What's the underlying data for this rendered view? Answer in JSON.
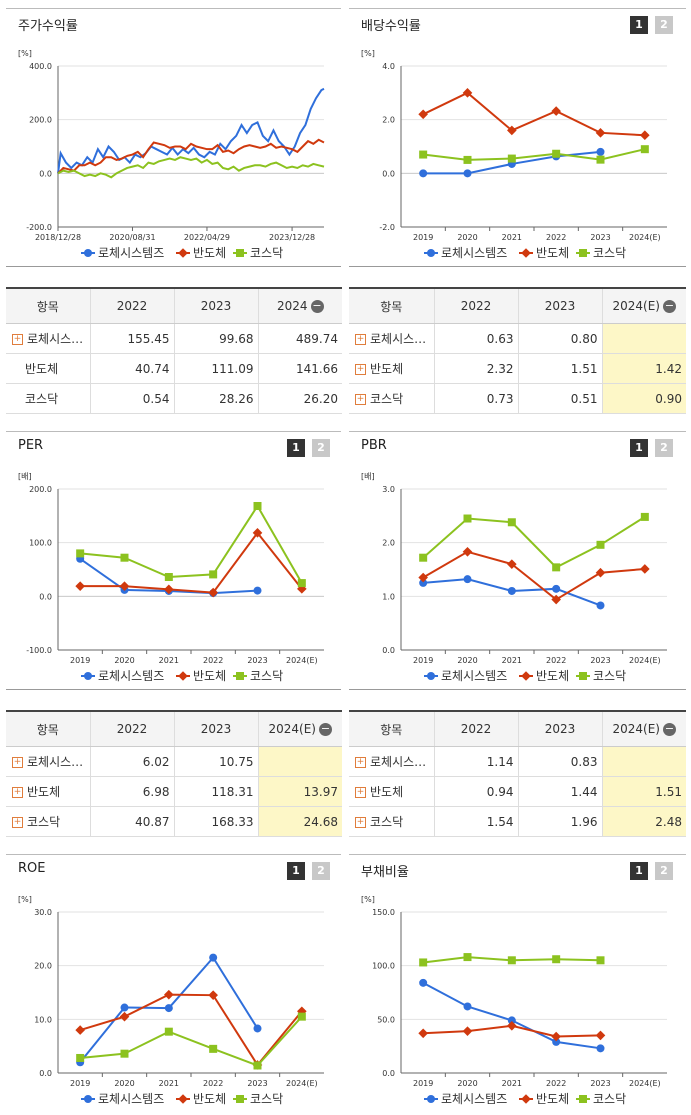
{
  "colors": {
    "rohe": "#2f6fdb",
    "semi": "#d0390e",
    "kosdaq": "#8cc21f"
  },
  "panels": {
    "stock_return": {
      "title": "주가수익률"
    },
    "dividend": {
      "title": "배당수익률",
      "page1": "1",
      "page2": "2"
    },
    "per": {
      "title": "PER",
      "page1": "1",
      "page2": "2"
    },
    "pbr": {
      "title": "PBR",
      "page1": "1",
      "page2": "2"
    },
    "roe": {
      "title": "ROE",
      "page1": "1",
      "page2": "2"
    },
    "debt": {
      "title": "부채비율",
      "page1": "1",
      "page2": "2"
    }
  },
  "chart_data": [
    {
      "id": "stock_return",
      "type": "line",
      "title": "주가수익률",
      "unit": "[%]",
      "ylim": [
        -200,
        400
      ],
      "yticks": [
        "400.0",
        "200.0",
        "0.0",
        "-200.0"
      ],
      "xtick_labels": [
        "2018/12/28",
        "2020/08/31",
        "2022/04/29",
        "2023/12/28"
      ],
      "x_range": [
        0,
        100
      ],
      "xtick_pos": [
        0,
        28,
        56,
        88
      ],
      "series": [
        {
          "name": "로체시스템즈",
          "color": "#2f6fdb",
          "x": [
            0,
            1,
            3,
            5,
            7,
            9,
            11,
            13,
            15,
            17,
            19,
            21,
            23,
            25,
            27,
            29,
            31,
            33,
            35,
            37,
            39,
            41,
            43,
            45,
            47,
            49,
            51,
            53,
            55,
            57,
            59,
            61,
            63,
            65,
            67,
            69,
            71,
            73,
            75,
            77,
            79,
            81,
            83,
            85,
            87,
            89,
            91,
            93,
            95,
            97,
            99,
            100
          ],
          "values": [
            0,
            75,
            40,
            20,
            40,
            30,
            60,
            40,
            90,
            60,
            100,
            80,
            50,
            60,
            40,
            70,
            60,
            75,
            100,
            90,
            80,
            70,
            95,
            70,
            90,
            75,
            95,
            70,
            60,
            80,
            70,
            110,
            90,
            120,
            140,
            180,
            150,
            180,
            190,
            140,
            120,
            160,
            120,
            100,
            70,
            100,
            150,
            180,
            240,
            280,
            310,
            315
          ]
        },
        {
          "name": "반도체",
          "color": "#d0390e",
          "x": [
            0,
            2,
            4,
            6,
            8,
            10,
            12,
            14,
            16,
            18,
            20,
            22,
            24,
            26,
            28,
            30,
            32,
            34,
            36,
            38,
            40,
            42,
            44,
            46,
            48,
            50,
            52,
            54,
            56,
            58,
            60,
            62,
            64,
            66,
            68,
            70,
            72,
            74,
            76,
            78,
            80,
            82,
            84,
            86,
            88,
            90,
            92,
            94,
            96,
            98,
            100
          ],
          "values": [
            0,
            20,
            15,
            10,
            30,
            30,
            40,
            30,
            40,
            60,
            60,
            50,
            55,
            65,
            70,
            80,
            60,
            90,
            115,
            110,
            105,
            95,
            100,
            100,
            90,
            110,
            100,
            95,
            90,
            90,
            105,
            80,
            85,
            75,
            90,
            100,
            105,
            100,
            95,
            100,
            110,
            95,
            100,
            95,
            90,
            80,
            100,
            120,
            110,
            125,
            115
          ]
        },
        {
          "name": "코스닥",
          "color": "#8cc21f",
          "x": [
            0,
            2,
            4,
            6,
            8,
            10,
            12,
            14,
            16,
            18,
            20,
            22,
            24,
            26,
            28,
            30,
            32,
            34,
            36,
            38,
            40,
            42,
            44,
            46,
            48,
            50,
            52,
            54,
            56,
            58,
            60,
            62,
            64,
            66,
            68,
            70,
            72,
            74,
            76,
            78,
            80,
            82,
            84,
            86,
            88,
            90,
            92,
            94,
            96,
            98,
            100
          ],
          "values": [
            0,
            10,
            5,
            10,
            0,
            -10,
            -5,
            -10,
            0,
            -5,
            -15,
            0,
            10,
            20,
            25,
            30,
            20,
            40,
            35,
            45,
            50,
            55,
            50,
            60,
            55,
            50,
            55,
            40,
            50,
            35,
            40,
            20,
            15,
            25,
            10,
            20,
            25,
            30,
            30,
            25,
            35,
            40,
            30,
            20,
            25,
            20,
            30,
            25,
            35,
            30,
            25
          ]
        }
      ]
    },
    {
      "id": "dividend",
      "type": "line",
      "unit": "[%]",
      "ylim": [
        -2,
        4
      ],
      "yticks": [
        "4.0",
        "2.0",
        "0.0",
        "-2.0"
      ],
      "categories": [
        "2019",
        "2020",
        "2021",
        "2022",
        "2023",
        "2024(E)"
      ],
      "series": [
        {
          "name": "로체시스템즈",
          "color": "#2f6fdb",
          "values": [
            0.0,
            0.0,
            0.35,
            0.63,
            0.8,
            null
          ]
        },
        {
          "name": "반도체",
          "color": "#d0390e",
          "values": [
            2.2,
            3.0,
            1.6,
            2.32,
            1.51,
            1.42
          ]
        },
        {
          "name": "코스닥",
          "color": "#8cc21f",
          "values": [
            0.7,
            0.5,
            0.55,
            0.73,
            0.51,
            0.9
          ]
        }
      ]
    },
    {
      "id": "per",
      "type": "line",
      "unit": "[배]",
      "ylim": [
        -100,
        200
      ],
      "yticks": [
        "200.0",
        "100.0",
        "0.0",
        "-100.0"
      ],
      "categories": [
        "2019",
        "2020",
        "2021",
        "2022",
        "2023",
        "2024(E)"
      ],
      "series": [
        {
          "name": "로체시스템즈",
          "color": "#2f6fdb",
          "values": [
            70,
            12,
            10,
            6.02,
            10.75,
            null
          ]
        },
        {
          "name": "반도체",
          "color": "#d0390e",
          "values": [
            19,
            19,
            13,
            6.98,
            118.31,
            13.97
          ]
        },
        {
          "name": "코스닥",
          "color": "#8cc21f",
          "values": [
            80,
            72,
            36,
            40.87,
            168.33,
            24.68
          ]
        }
      ]
    },
    {
      "id": "pbr",
      "type": "line",
      "unit": "[배]",
      "ylim": [
        0,
        3
      ],
      "yticks": [
        "3.0",
        "2.0",
        "1.0",
        "0.0"
      ],
      "categories": [
        "2019",
        "2020",
        "2021",
        "2022",
        "2023",
        "2024(E)"
      ],
      "series": [
        {
          "name": "로체시스템즈",
          "color": "#2f6fdb",
          "values": [
            1.25,
            1.32,
            1.1,
            1.14,
            0.83,
            null
          ]
        },
        {
          "name": "반도체",
          "color": "#d0390e",
          "values": [
            1.35,
            1.83,
            1.6,
            0.94,
            1.44,
            1.51
          ]
        },
        {
          "name": "코스닥",
          "color": "#8cc21f",
          "values": [
            1.72,
            2.45,
            2.38,
            1.54,
            1.96,
            2.48
          ]
        }
      ]
    },
    {
      "id": "roe",
      "type": "line",
      "unit": "[%]",
      "ylim": [
        0,
        30
      ],
      "yticks": [
        "30.0",
        "20.0",
        "10.0",
        "0.0"
      ],
      "categories": [
        "2019",
        "2020",
        "2021",
        "2022",
        "2023",
        "2024(E)"
      ],
      "series": [
        {
          "name": "로체시스템즈",
          "color": "#2f6fdb",
          "values": [
            2.0,
            12.2,
            12.1,
            21.5,
            8.3,
            null
          ]
        },
        {
          "name": "반도체",
          "color": "#d0390e",
          "values": [
            8.0,
            10.5,
            14.6,
            14.5,
            1.5,
            11.5
          ]
        },
        {
          "name": "코스닥",
          "color": "#8cc21f",
          "values": [
            2.8,
            3.6,
            7.7,
            4.5,
            1.4,
            10.5
          ]
        }
      ]
    },
    {
      "id": "debt",
      "type": "line",
      "unit": "[%]",
      "ylim": [
        0,
        150
      ],
      "yticks": [
        "150.0",
        "100.0",
        "50.0",
        "0.0"
      ],
      "categories": [
        "2019",
        "2020",
        "2021",
        "2022",
        "2023",
        "2024(E)"
      ],
      "series": [
        {
          "name": "로체시스템즈",
          "color": "#2f6fdb",
          "values": [
            84,
            62,
            49,
            29,
            23,
            null
          ]
        },
        {
          "name": "반도체",
          "color": "#d0390e",
          "values": [
            37,
            39,
            44,
            34,
            35,
            null
          ]
        },
        {
          "name": "코스닥",
          "color": "#8cc21f",
          "values": [
            103,
            108,
            105,
            106,
            105,
            null
          ]
        }
      ]
    }
  ],
  "tables": {
    "stock_return": {
      "headers": [
        "항목",
        "2022",
        "2023",
        "2024"
      ],
      "rows": [
        [
          "로체시스…",
          "155.45",
          "99.68",
          "489.74"
        ],
        [
          "반도체",
          "40.74",
          "111.09",
          "141.66"
        ],
        [
          "코스닥",
          "0.54",
          "28.26",
          "26.20"
        ]
      ]
    },
    "dividend": {
      "headers": [
        "항목",
        "2022",
        "2023",
        "2024(E)"
      ],
      "rows": [
        [
          "로체시스…",
          "0.63",
          "0.80",
          ""
        ],
        [
          "반도체",
          "2.32",
          "1.51",
          "1.42"
        ],
        [
          "코스닥",
          "0.73",
          "0.51",
          "0.90"
        ]
      ]
    },
    "per": {
      "headers": [
        "항목",
        "2022",
        "2023",
        "2024(E)"
      ],
      "rows": [
        [
          "로체시스…",
          "6.02",
          "10.75",
          ""
        ],
        [
          "반도체",
          "6.98",
          "118.31",
          "13.97"
        ],
        [
          "코스닥",
          "40.87",
          "168.33",
          "24.68"
        ]
      ]
    },
    "pbr": {
      "headers": [
        "항목",
        "2022",
        "2023",
        "2024(E)"
      ],
      "rows": [
        [
          "로체시스…",
          "1.14",
          "0.83",
          ""
        ],
        [
          "반도체",
          "0.94",
          "1.44",
          "1.51"
        ],
        [
          "코스닥",
          "1.54",
          "1.96",
          "2.48"
        ]
      ]
    }
  }
}
